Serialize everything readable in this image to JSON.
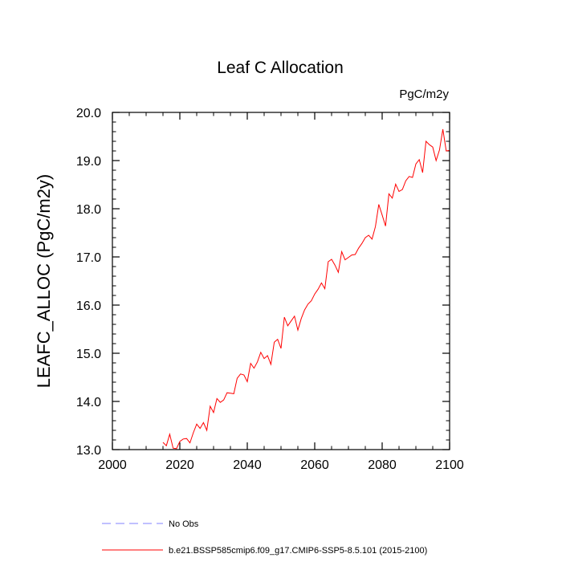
{
  "chart_data": {
    "type": "line",
    "title": "Leaf C Allocation",
    "units_label": "PgC/m2y",
    "xlabel": "",
    "ylabel": "LEAFC_ALLOC  (PgC/m2y)",
    "xlim": [
      2000,
      2100
    ],
    "ylim": [
      13.0,
      20.0
    ],
    "x_ticks": [
      2000,
      2020,
      2040,
      2060,
      2080,
      2100
    ],
    "x_tick_labels": [
      "2000",
      "2020",
      "2040",
      "2060",
      "2080",
      "2100"
    ],
    "y_ticks": [
      13.0,
      14.0,
      15.0,
      16.0,
      17.0,
      18.0,
      19.0,
      20.0
    ],
    "y_tick_labels": [
      "13.0",
      "14.0",
      "15.0",
      "16.0",
      "17.0",
      "18.0",
      "19.0",
      "20.0"
    ],
    "x_minor_step": 5,
    "y_minor_step": 0.2,
    "grid": false,
    "legend_position": "bottom",
    "series": [
      {
        "name": "No Obs",
        "color": "#8080ff",
        "dash": "dashed",
        "x": [],
        "values": []
      },
      {
        "name": "b.e21.BSSP585cmip6.f09_g17.CMIP6-SSP5-8.5.101 (2015-2100)",
        "color": "#ff0000",
        "dash": "solid",
        "x": [
          2015,
          2016,
          2017,
          2018,
          2019,
          2020,
          2021,
          2022,
          2023,
          2024,
          2025,
          2026,
          2027,
          2028,
          2029,
          2030,
          2031,
          2032,
          2033,
          2034,
          2035,
          2036,
          2037,
          2038,
          2039,
          2040,
          2041,
          2042,
          2043,
          2044,
          2045,
          2046,
          2047,
          2048,
          2049,
          2050,
          2051,
          2052,
          2053,
          2054,
          2055,
          2056,
          2057,
          2058,
          2059,
          2060,
          2061,
          2062,
          2063,
          2064,
          2065,
          2066,
          2067,
          2068,
          2069,
          2070,
          2071,
          2072,
          2073,
          2074,
          2075,
          2076,
          2077,
          2078,
          2079,
          2080,
          2081,
          2082,
          2083,
          2084,
          2085,
          2086,
          2087,
          2088,
          2089,
          2090,
          2091,
          2092,
          2093,
          2094,
          2095,
          2096,
          2097,
          2098,
          2099,
          2100
        ],
        "values": [
          13.15,
          13.08,
          13.32,
          13.03,
          13.02,
          13.17,
          13.22,
          13.23,
          13.14,
          13.35,
          13.53,
          13.44,
          13.56,
          13.4,
          13.9,
          13.77,
          14.06,
          13.98,
          14.03,
          14.18,
          14.17,
          14.16,
          14.48,
          14.57,
          14.55,
          14.41,
          14.79,
          14.69,
          14.82,
          15.02,
          14.89,
          14.95,
          14.77,
          15.23,
          15.29,
          15.1,
          15.75,
          15.57,
          15.67,
          15.77,
          15.48,
          15.72,
          15.9,
          16.02,
          16.09,
          16.23,
          16.33,
          16.46,
          16.34,
          16.9,
          16.95,
          16.83,
          16.68,
          17.11,
          16.94,
          16.99,
          17.04,
          17.05,
          17.18,
          17.28,
          17.4,
          17.45,
          17.37,
          17.63,
          18.09,
          17.87,
          17.64,
          18.31,
          18.22,
          18.51,
          18.36,
          18.4,
          18.58,
          18.67,
          18.65,
          18.93,
          19.02,
          18.75,
          19.4,
          19.33,
          19.28,
          19.0,
          19.22,
          19.65,
          19.2,
          19.21
        ]
      }
    ]
  }
}
